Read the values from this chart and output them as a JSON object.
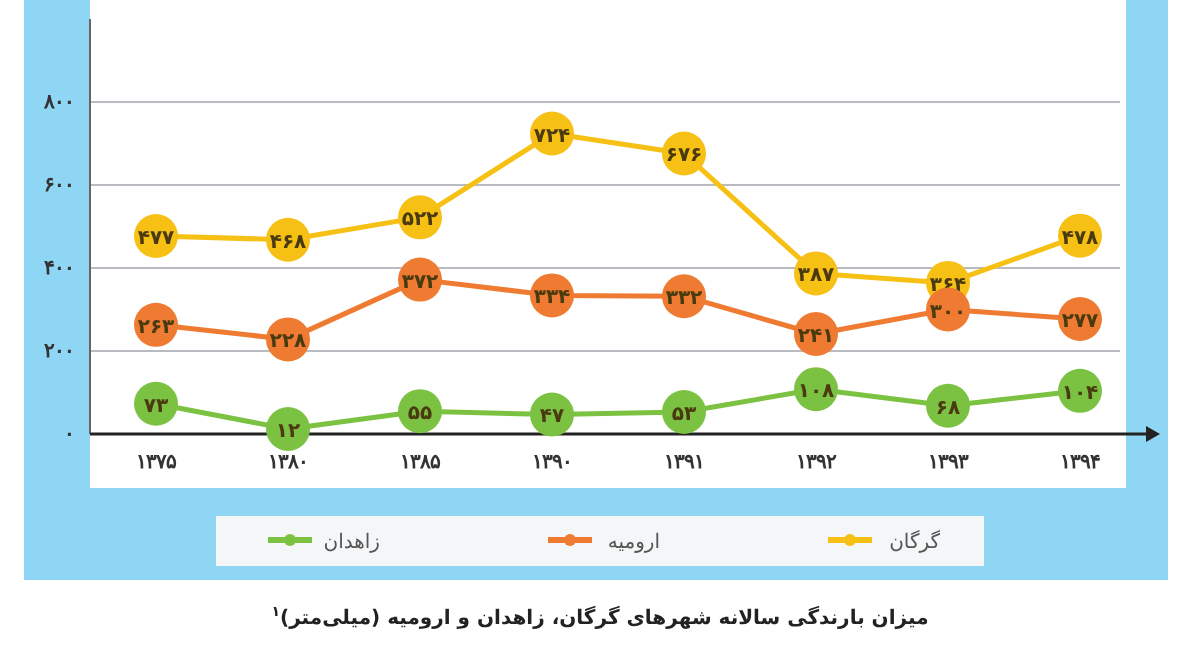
{
  "chart_data": {
    "type": "line",
    "categories": [
      "۱۳۷۵",
      "۱۳۸۰",
      "۱۳۸۵",
      "۱۳۹۰",
      "۱۳۹۱",
      "۱۳۹۲",
      "۱۳۹۳",
      "۱۳۹۴"
    ],
    "series": [
      {
        "name": "گرگان",
        "color": "#f6c014",
        "values": [
          477,
          468,
          522,
          724,
          676,
          387,
          364,
          478
        ],
        "value_labels": [
          "۴۷۷",
          "۴۶۸",
          "۵۲۲",
          "۷۲۴",
          "۶۷۶",
          "۳۸۷",
          "۳۶۴",
          "۴۷۸"
        ]
      },
      {
        "name": "ارومیه",
        "color": "#ee7b31",
        "values": [
          263,
          228,
          372,
          334,
          332,
          241,
          300,
          277
        ],
        "value_labels": [
          "۲۶۳",
          "۲۲۸",
          "۳۷۲",
          "۳۳۴",
          "۳۳۲",
          "۲۴۱",
          "۳۰۰",
          "۲۷۷"
        ]
      },
      {
        "name": "زاهدان",
        "color": "#7cc242",
        "values": [
          73,
          12,
          55,
          47,
          53,
          108,
          68,
          104
        ],
        "value_labels": [
          "۷۳",
          "۱۲",
          "۵۵",
          "۴۷",
          "۵۳",
          "۱۰۸",
          "۶۸",
          "۱۰۴"
        ]
      }
    ],
    "ylim": [
      0,
      1000
    ],
    "yticks": [
      {
        "value": 0,
        "label": "۰"
      },
      {
        "value": 200,
        "label": "۲۰۰"
      },
      {
        "value": 400,
        "label": "۴۰۰"
      },
      {
        "value": 600,
        "label": "۶۰۰"
      },
      {
        "value": 800,
        "label": "۸۰۰"
      }
    ],
    "grid": "y",
    "marker": "circle",
    "line_style": "solid",
    "legend": "bottom",
    "annotations": [
      "میزان بارندگی سالانه شهرهای گرگان، زاهدان و ارومیه (میلی‌متر)$^{۱}$"
    ]
  }
}
